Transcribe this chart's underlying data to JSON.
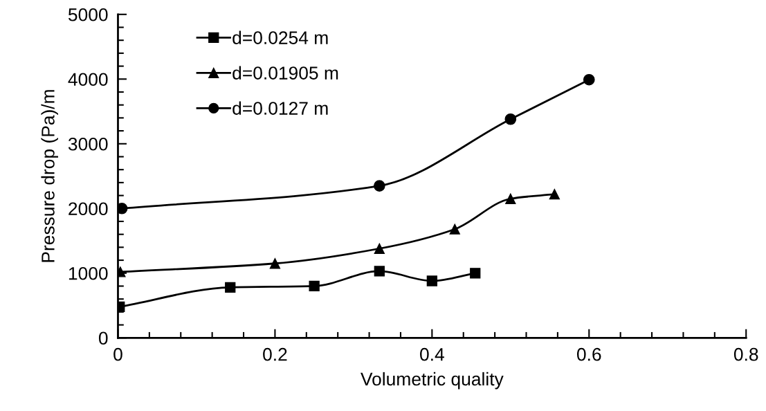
{
  "chart_data": {
    "type": "line",
    "xlabel": "Volumetric quality",
    "ylabel": "Pressure drop (Pa)/m",
    "xlim": [
      0,
      0.8
    ],
    "xticks": [
      0,
      0.2,
      0.4,
      0.6,
      0.8
    ],
    "ylim": [
      0,
      5000
    ],
    "yticks": [
      0,
      1000,
      2000,
      3000,
      4000,
      5000
    ],
    "grid": false,
    "legend": "top left",
    "line_style": "solid",
    "series": [
      {
        "name": "d=0.0254 m",
        "color": "#000000",
        "marker": "square",
        "x": [
          0.002,
          0.143,
          0.25,
          0.333,
          0.4,
          0.455
        ],
        "values": [
          480,
          780,
          800,
          1030,
          880,
          1000
        ]
      },
      {
        "name": "d=0.01905 m",
        "color": "#000000",
        "marker": "triangle",
        "x": [
          0.003,
          0.2,
          0.333,
          0.429,
          0.5,
          0.556
        ],
        "values": [
          1020,
          1150,
          1380,
          1680,
          2150,
          2220
        ]
      },
      {
        "name": "d=0.0127 m",
        "color": "#000000",
        "marker": "circle",
        "x": [
          0.005,
          0.333,
          0.5,
          0.6
        ],
        "values": [
          2000,
          2350,
          3380,
          3990
        ]
      }
    ]
  }
}
